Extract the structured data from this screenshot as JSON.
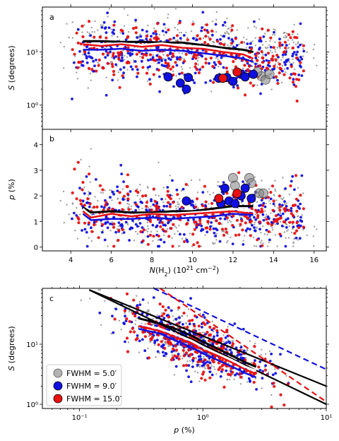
{
  "figure": {
    "panels": [
      "a",
      "b",
      "c"
    ]
  },
  "colors": {
    "fwhm_5": "#7f7f7f",
    "fwhm_9": "#1010e0",
    "fwhm_15": "#e81010",
    "black": "#000000"
  },
  "chart_data": [
    {
      "type": "scatter",
      "panel": "a",
      "ylabel": "S (degrees)",
      "xlim": [
        2.6,
        16.6
      ],
      "ylim_log": [
        0.35,
        70
      ],
      "y_scale": "log",
      "y_ticks": [
        {
          "v": 1,
          "label": "10⁰"
        },
        {
          "v": 10,
          "label": "10¹"
        }
      ],
      "x_ticks": [
        4,
        6,
        8,
        10,
        12,
        14,
        16
      ],
      "large_points": {
        "fwhm_9": [
          [
            8.8,
            3.4
          ],
          [
            9.4,
            2.6
          ],
          [
            9.7,
            2.0
          ],
          [
            9.8,
            3.3
          ],
          [
            11.3,
            3.2
          ],
          [
            11.7,
            3.3
          ],
          [
            12.0,
            2.8
          ],
          [
            12.4,
            3.8
          ],
          [
            12.6,
            3.4
          ],
          [
            13.0,
            3.8
          ]
        ],
        "fwhm_15": [
          [
            11.5,
            3.2
          ],
          [
            12.2,
            4.2
          ]
        ],
        "fwhm_5": [
          [
            13.4,
            3.5
          ],
          [
            13.6,
            3.0
          ],
          [
            13.2,
            4.2
          ],
          [
            13.8,
            3.8
          ]
        ]
      },
      "running_mean": {
        "black_x": [
          4.6,
          5.5,
          6.5,
          7.5,
          8.5,
          9.5,
          10.5,
          11.5,
          12.5,
          13.0
        ],
        "black_y": [
          16,
          16,
          15.5,
          15.5,
          15,
          15,
          13.5,
          12,
          11,
          10
        ],
        "white_y": [
          14,
          14,
          14.5,
          13.5,
          14.5,
          13,
          12.5,
          11,
          9.5,
          8.5
        ],
        "red_y": [
          14,
          13,
          14,
          12.5,
          13.5,
          12,
          11.5,
          10,
          9,
          7.5
        ],
        "blue_y": [
          11,
          11,
          11.5,
          10.5,
          11,
          10.5,
          9.5,
          8.5,
          7.5,
          6.5
        ]
      }
    },
    {
      "type": "scatter",
      "panel": "b",
      "ylabel": "p (%)",
      "xlabel": "N(H₂) (10²¹ cm⁻²)",
      "xlim": [
        2.6,
        16.6
      ],
      "ylim": [
        -0.15,
        4.6
      ],
      "y_ticks": [
        0,
        1,
        2,
        3,
        4
      ],
      "x_ticks": [
        4,
        6,
        8,
        10,
        12,
        14,
        16
      ],
      "large_points": {
        "fwhm_9": [
          [
            9.7,
            1.8
          ],
          [
            11.6,
            2.3
          ],
          [
            11.8,
            1.8
          ],
          [
            12.1,
            1.7
          ],
          [
            12.4,
            2.0
          ],
          [
            12.6,
            2.3
          ],
          [
            12.9,
            1.9
          ],
          [
            11.4,
            1.7
          ]
        ],
        "fwhm_15": [
          [
            11.3,
            1.9
          ],
          [
            12.2,
            2.1
          ]
        ],
        "fwhm_5": [
          [
            12.0,
            2.7
          ],
          [
            12.8,
            2.7
          ],
          [
            12.9,
            2.5
          ],
          [
            13.3,
            2.1
          ],
          [
            13.5,
            2.1
          ],
          [
            12.1,
            2.4
          ]
        ]
      },
      "running_mean": {
        "black_x": [
          4.6,
          5.0,
          6.0,
          7.0,
          8.0,
          9.0,
          10.0,
          11.0,
          12.0,
          13.0
        ],
        "black_y": [
          1.55,
          1.35,
          1.4,
          1.35,
          1.35,
          1.4,
          1.4,
          1.5,
          1.6,
          1.6
        ],
        "white_y": [
          1.5,
          1.2,
          1.3,
          1.25,
          1.3,
          1.3,
          1.35,
          1.4,
          1.5,
          1.4
        ],
        "red_y": [
          1.4,
          1.15,
          1.3,
          1.2,
          1.3,
          1.25,
          1.3,
          1.35,
          1.4,
          1.3
        ],
        "blue_y": [
          1.3,
          1.05,
          1.1,
          1.1,
          1.15,
          1.1,
          1.15,
          1.2,
          1.3,
          1.25
        ]
      }
    },
    {
      "type": "scatter",
      "panel": "c",
      "ylabel": "S (degrees)",
      "xlabel": "p (%)",
      "x_scale": "log",
      "y_scale": "log",
      "xlim_log": [
        0.05,
        10
      ],
      "ylim_log": [
        0.85,
        85
      ],
      "x_ticks": [
        {
          "v": 0.1,
          "label": "10⁻¹"
        },
        {
          "v": 1,
          "label": "10⁰"
        },
        {
          "v": 10,
          "label": "10¹"
        }
      ],
      "y_ticks": [
        {
          "v": 1,
          "label": "10⁰"
        },
        {
          "v": 10,
          "label": "10¹"
        }
      ],
      "fit_lines": [
        {
          "color": "black",
          "style": "solid",
          "p": [
            0.12,
            10
          ],
          "s": [
            80,
            2.0
          ]
        },
        {
          "color": "black",
          "style": "solid",
          "p": [
            0.12,
            10
          ],
          "s": [
            80,
            1.0
          ]
        },
        {
          "color": "blue",
          "style": "dashed",
          "p": [
            0.4,
            10
          ],
          "s": [
            85,
            3.8
          ]
        },
        {
          "color": "red",
          "style": "dashed",
          "p": [
            0.45,
            10
          ],
          "s": [
            85,
            1.1
          ]
        }
      ],
      "running_mean": {
        "x": [
          0.3,
          0.45,
          0.6,
          0.8,
          1.0,
          1.3,
          1.7,
          2.2,
          2.7
        ],
        "black_y": [
          27,
          22,
          18,
          14,
          11,
          8.5,
          6.5,
          5.0,
          4.2
        ],
        "white_y": [
          22,
          18,
          14.5,
          11.5,
          9,
          7,
          5.5,
          4.2,
          3.6
        ],
        "red_y": [
          20,
          16.5,
          13,
          10.5,
          8,
          6.5,
          5,
          3.8,
          3.2
        ],
        "blue_y": [
          18,
          15,
          11.5,
          9,
          7,
          5.5,
          4.3,
          3.3,
          2.8
        ]
      }
    }
  ],
  "legend": {
    "items": [
      {
        "label": "FWHM = 5.0′",
        "color_key": "fwhm_5"
      },
      {
        "label": "FWHM = 9.0′",
        "color_key": "fwhm_9"
      },
      {
        "label": "FWHM = 15.0′",
        "color_key": "fwhm_15"
      }
    ]
  },
  "labels": {
    "panel_a_ylabel": "S (degrees)",
    "panel_b_ylabel": "p (%)",
    "panel_b_xlabel": "N(H₂) (10²¹ cm⁻²)",
    "panel_c_ylabel": "S (degrees)",
    "panel_c_xlabel": "p (%)",
    "letter_a": "a",
    "letter_b": "b",
    "letter_c": "c"
  }
}
